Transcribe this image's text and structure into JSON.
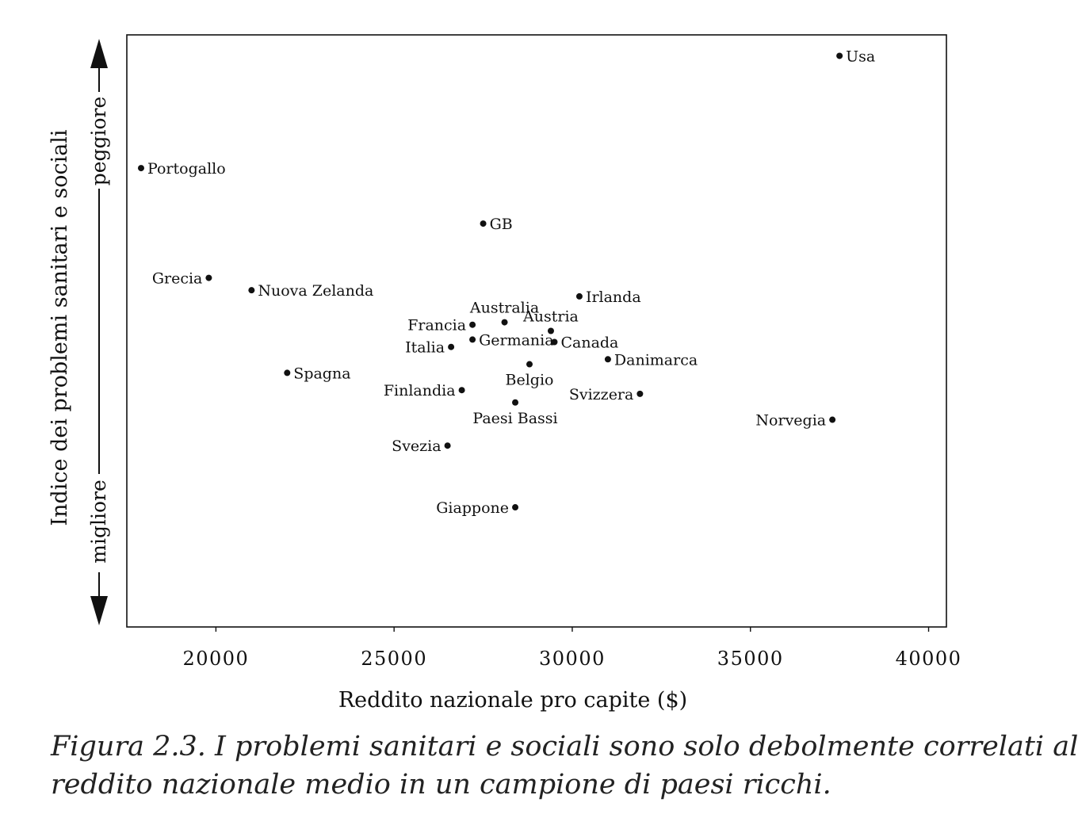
{
  "chart_data": {
    "type": "scatter",
    "title": "",
    "xlabel": "Reddito nazionale pro capite ($)",
    "ylabel": "Indice dei problemi sanitari e sociali",
    "y_direction_labels": {
      "top": "peggiore",
      "bottom": "migliore"
    },
    "xlim": [
      17500,
      40500
    ],
    "ylim": [
      -2.4,
      2.4
    ],
    "x_ticks": [
      20000,
      25000,
      30000,
      35000,
      40000
    ],
    "x_tick_labels": [
      "20000",
      "25000",
      "30000",
      "35000",
      "40000"
    ],
    "y_ticks_labeled": false,
    "grid": false,
    "legend": "none",
    "points": [
      {
        "label": "Usa",
        "x": 37500,
        "y": 2.23,
        "label_side": "right"
      },
      {
        "label": "Portogallo",
        "x": 17900,
        "y": 1.32,
        "label_side": "right"
      },
      {
        "label": "GB",
        "x": 27500,
        "y": 0.87,
        "label_side": "right"
      },
      {
        "label": "Grecia",
        "x": 19800,
        "y": 0.43,
        "label_side": "left"
      },
      {
        "label": "Nuova Zelanda",
        "x": 21000,
        "y": 0.33,
        "label_side": "right"
      },
      {
        "label": "Irlanda",
        "x": 30200,
        "y": 0.28,
        "label_side": "right"
      },
      {
        "label": "Australia",
        "x": 28100,
        "y": 0.07,
        "label_side": "above"
      },
      {
        "label": "Francia",
        "x": 27200,
        "y": 0.05,
        "label_side": "left"
      },
      {
        "label": "Austria",
        "x": 29400,
        "y": 0.0,
        "label_side": "above"
      },
      {
        "label": "Germania",
        "x": 27200,
        "y": -0.07,
        "label_side": "right"
      },
      {
        "label": "Canada",
        "x": 29500,
        "y": -0.09,
        "label_side": "right"
      },
      {
        "label": "Italia",
        "x": 26600,
        "y": -0.13,
        "label_side": "left"
      },
      {
        "label": "Danimarca",
        "x": 31000,
        "y": -0.23,
        "label_side": "right"
      },
      {
        "label": "Belgio",
        "x": 28800,
        "y": -0.27,
        "label_side": "below"
      },
      {
        "label": "Spagna",
        "x": 22000,
        "y": -0.34,
        "label_side": "right"
      },
      {
        "label": "Finlandia",
        "x": 26900,
        "y": -0.48,
        "label_side": "left"
      },
      {
        "label": "Svizzera",
        "x": 31900,
        "y": -0.51,
        "label_side": "left"
      },
      {
        "label": "Paesi Bassi",
        "x": 28400,
        "y": -0.58,
        "label_side": "below"
      },
      {
        "label": "Norvegia",
        "x": 37300,
        "y": -0.72,
        "label_side": "left"
      },
      {
        "label": "Svezia",
        "x": 26500,
        "y": -0.93,
        "label_side": "left"
      },
      {
        "label": "Giappone",
        "x": 28400,
        "y": -1.43,
        "label_side": "left"
      }
    ]
  },
  "caption": {
    "line1": "Figura 2.3. I problemi sanitari e sociali sono solo debolmente correlati al",
    "line2": "reddito nazionale medio in un campione di paesi ricchi."
  },
  "colors": {
    "ink": "#111111",
    "background": "#ffffff"
  }
}
